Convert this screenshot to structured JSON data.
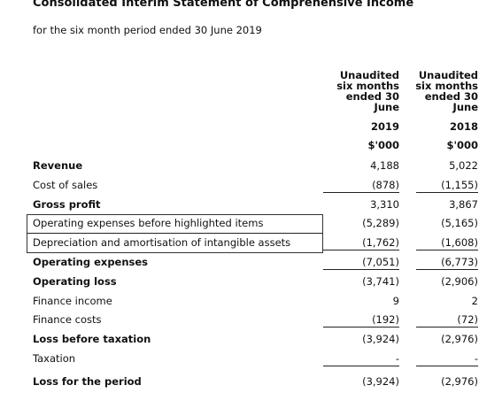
{
  "header": {
    "title": "Consolidated Interim Statement of Comprehensive Income",
    "subtitle": "for the six month period ended 30 June 2019"
  },
  "table": {
    "columns": [
      {
        "heading": "Unaudited six months ended 30 June",
        "year": "2019",
        "unit": "$'000"
      },
      {
        "heading": "Unaudited six months ended 30 June",
        "year": "2018",
        "unit": "$'000"
      }
    ],
    "rows": [
      [
        "Revenue",
        "4,188",
        "5,022"
      ],
      [
        "Cost of sales",
        "(878)",
        "(1,155)"
      ],
      [
        "Gross profit",
        "3,310",
        "3,867"
      ],
      [
        "Operating expenses before highlighted items",
        "(5,289)",
        "(5,165)"
      ],
      [
        "Depreciation and amortisation of intangible assets",
        "(1,762)",
        "(1,608)"
      ],
      [
        "Operating expenses",
        "(7,051)",
        "(6,773)"
      ],
      [
        "Operating loss",
        "(3,741)",
        "(2,906)"
      ],
      [
        "Finance income",
        "9",
        "2"
      ],
      [
        "Finance costs",
        "(192)",
        "(72)"
      ],
      [
        "Loss before taxation",
        "(3,924)",
        "(2,976)"
      ],
      [
        "Taxation",
        "-",
        "-"
      ],
      [
        "Loss for the period",
        "(3,924)",
        "(2,976)"
      ]
    ]
  }
}
